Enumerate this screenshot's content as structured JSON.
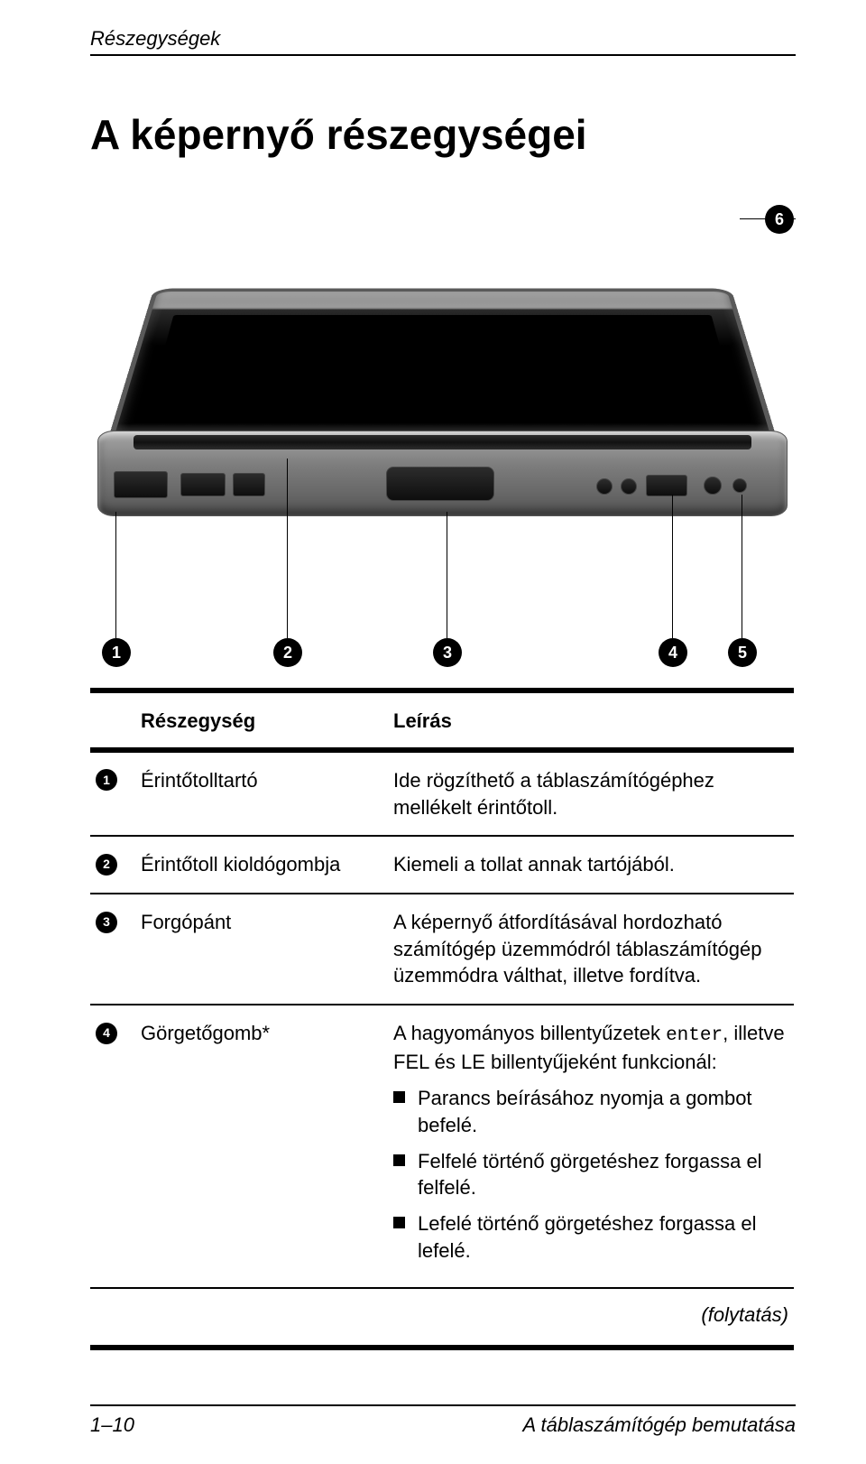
{
  "running_header": "Részegységek",
  "page_title": "A képernyő részegységei",
  "callouts": [
    "1",
    "2",
    "3",
    "4",
    "5",
    "6"
  ],
  "table": {
    "headers": {
      "component": "Részegység",
      "description": "Leírás"
    },
    "rows": [
      {
        "num": "1",
        "name": "Érintőtolltartó",
        "desc": "Ide rögzíthető a táblaszámítógéphez mellékelt érintőtoll."
      },
      {
        "num": "2",
        "name": "Érintőtoll kioldógombja",
        "desc": "Kiemeli a tollat annak tartójából."
      },
      {
        "num": "3",
        "name": "Forgópánt",
        "desc": "A képernyő átfordításával hordozható számítógép üzemmódról táblaszámítógép üzemmódra válthat, illetve fordítva."
      },
      {
        "num": "4",
        "name": "Görgetőgomb*",
        "desc_intro_pre": "A hagyományos billentyűzetek ",
        "desc_intro_code": "enter",
        "desc_intro_post": ", illetve FEL és LE billentyűjeként funkcionál:",
        "bullets": [
          "Parancs beírásához nyomja a gombot befelé.",
          "Felfelé történő görgetéshez forgassa el felfelé.",
          "Lefelé történő görgetéshez forgassa el lefelé."
        ]
      }
    ],
    "continuation": "(folytatás)"
  },
  "footer": {
    "left": "1–10",
    "right": "A táblaszámítógép bemutatása"
  }
}
